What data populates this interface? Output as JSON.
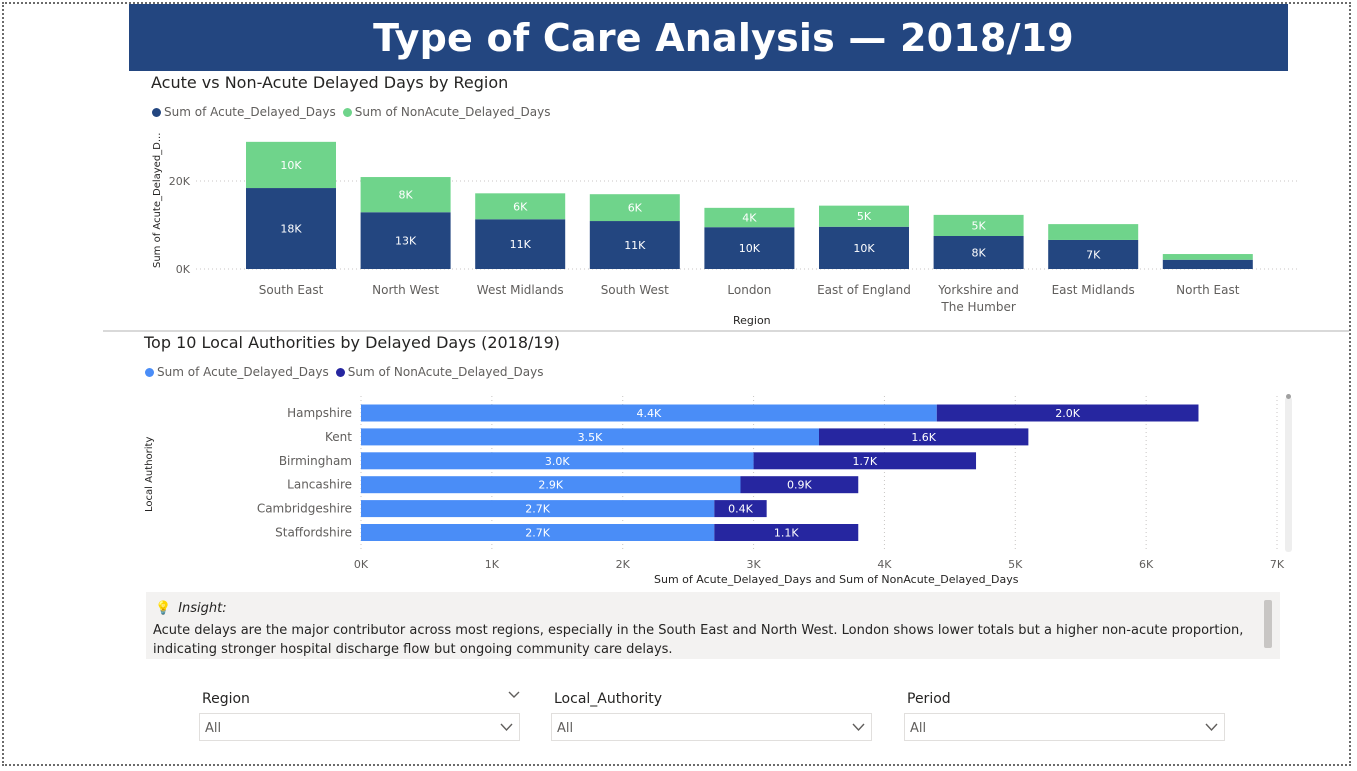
{
  "report": {
    "title": "Type of Care Analysis — 2018/19"
  },
  "region_chart": {
    "title": "Acute vs Non-Acute Delayed Days by Region",
    "legend": [
      "Sum of Acute_Delayed_Days",
      "Sum of NonAcute_Delayed_Days"
    ],
    "x_axis_title": "Region",
    "y_axis_title": "Sum of Acute_Delayed_D...",
    "colors": {
      "acute": "#234680",
      "nonacute": "#6fd48b"
    }
  },
  "la_chart": {
    "title": "Top 10 Local Authorities by Delayed Days (2018/19)",
    "legend": [
      "Sum of Acute_Delayed_Days",
      "Sum of NonAcute_Delayed_Days"
    ],
    "x_axis_title": "Sum of Acute_Delayed_Days and Sum of NonAcute_Delayed_Days",
    "y_axis_title": "Local Authority",
    "colors": {
      "acute": "#4a8df7",
      "nonacute": "#2626a0"
    }
  },
  "chart_data": [
    {
      "type": "bar",
      "orientation": "vertical",
      "stacked": true,
      "title": "Acute vs Non-Acute Delayed Days by Region",
      "xlabel": "Region",
      "ylabel": "Sum of Acute_Delayed_D...",
      "categories": [
        "South East",
        "North West",
        "West Midlands",
        "South West",
        "London",
        "East of England",
        "Yorkshire and The Humber",
        "East Midlands",
        "North East"
      ],
      "series": [
        {
          "name": "Sum of Acute_Delayed_Days",
          "values": [
            18400,
            12900,
            11300,
            10900,
            9500,
            9600,
            7500,
            6600,
            2100
          ],
          "labels": [
            "18K",
            "13K",
            "11K",
            "11K",
            "10K",
            "10K",
            "8K",
            "7K",
            ""
          ]
        },
        {
          "name": "Sum of NonAcute_Delayed_Days",
          "values": [
            10500,
            8000,
            5900,
            6100,
            4400,
            4800,
            4800,
            3600,
            1300
          ],
          "labels": [
            "10K",
            "8K",
            "6K",
            "6K",
            "4K",
            "5K",
            "5K",
            "",
            ""
          ]
        }
      ],
      "yticks": [
        0,
        20000
      ],
      "ytick_labels": [
        "0K",
        "20K"
      ],
      "ylim": [
        0,
        30000
      ],
      "grid": true,
      "legend_position": "top-left"
    },
    {
      "type": "bar",
      "orientation": "horizontal",
      "stacked": true,
      "title": "Top 10 Local Authorities by Delayed Days (2018/19)",
      "xlabel": "Sum of Acute_Delayed_Days and Sum of NonAcute_Delayed_Days",
      "ylabel": "Local Authority",
      "categories": [
        "Hampshire",
        "Kent",
        "Birmingham",
        "Lancashire",
        "Cambridgeshire",
        "Staffordshire"
      ],
      "series": [
        {
          "name": "Sum of Acute_Delayed_Days",
          "values": [
            4400,
            3500,
            3000,
            2900,
            2700,
            2700
          ],
          "labels": [
            "4.4K",
            "3.5K",
            "3.0K",
            "2.9K",
            "2.7K",
            "2.7K"
          ]
        },
        {
          "name": "Sum of NonAcute_Delayed_Days",
          "values": [
            2000,
            1600,
            1700,
            900,
            400,
            1100
          ],
          "labels": [
            "2.0K",
            "1.6K",
            "1.7K",
            "0.9K",
            "0.4K",
            "1.1K"
          ]
        }
      ],
      "xticks": [
        0,
        1000,
        2000,
        3000,
        4000,
        5000,
        6000,
        7000
      ],
      "xtick_labels": [
        "0K",
        "1K",
        "2K",
        "3K",
        "4K",
        "5K",
        "6K",
        "7K"
      ],
      "xlim": [
        0,
        7000
      ],
      "grid": true,
      "legend_position": "top-left"
    }
  ],
  "insight": {
    "heading": "Insight:",
    "icon": "lightbulb-icon",
    "text": "Acute delays are the major contributor across most regions, especially in the South East and North West. London shows lower totals but a higher non-acute proportion, indicating stronger hospital discharge flow but ongoing community care delays."
  },
  "slicers": [
    {
      "label": "Region",
      "value": "All"
    },
    {
      "label": "Local_Authority",
      "value": "All"
    },
    {
      "label": "Period",
      "value": "All"
    }
  ]
}
